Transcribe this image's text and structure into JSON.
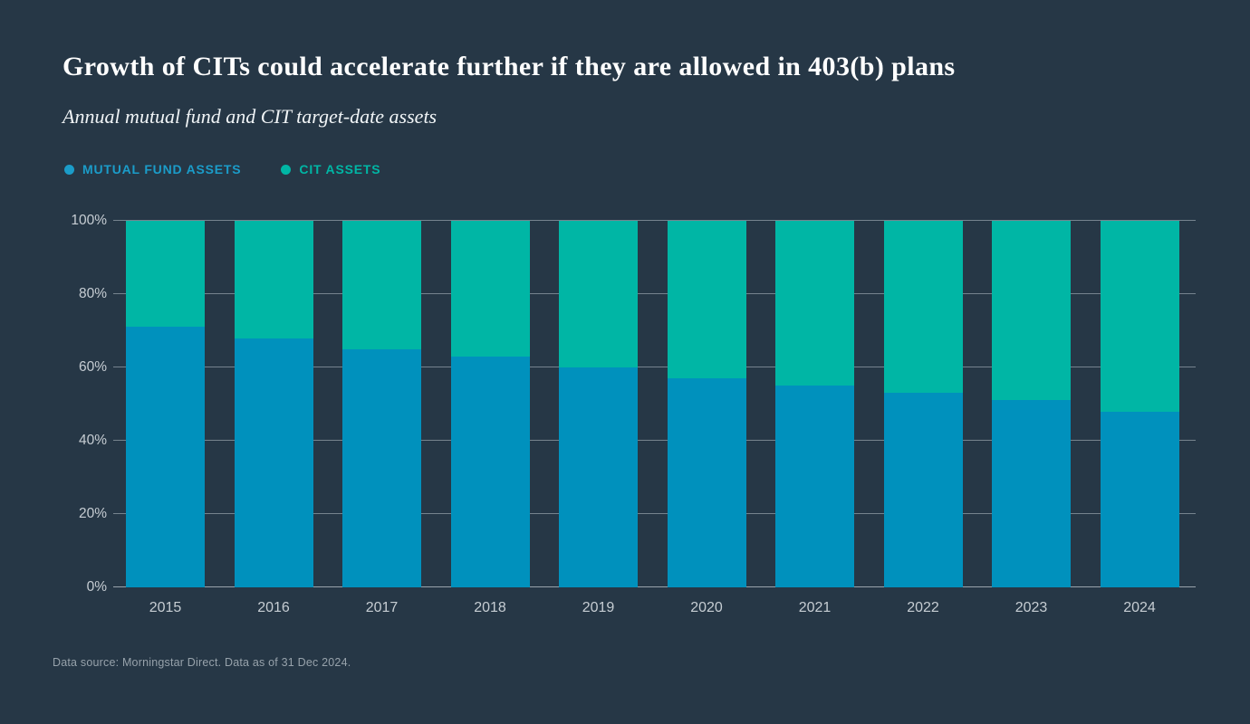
{
  "page": {
    "background_color": "#263746"
  },
  "header": {
    "title": "Growth of CITs could accelerate further if they are allowed in 403(b) plans",
    "subtitle": "Annual mutual fund and CIT target-date assets"
  },
  "legend": {
    "items": [
      {
        "label": "MUTUAL FUND ASSETS",
        "color": "#1b9cc9"
      },
      {
        "label": "CIT ASSETS",
        "color": "#00b6a5"
      }
    ]
  },
  "chart_data": {
    "type": "bar",
    "stacked": true,
    "percent_scale": true,
    "title": "Growth of CITs could accelerate further if they are allowed in 403(b) plans",
    "subtitle": "Annual mutual fund and CIT target-date assets",
    "categories": [
      "2015",
      "2016",
      "2017",
      "2018",
      "2019",
      "2020",
      "2021",
      "2022",
      "2023",
      "2024"
    ],
    "series": [
      {
        "name": "Mutual Fund Assets",
        "color": "#0091bd",
        "values": [
          71,
          68,
          65,
          63,
          60,
          57,
          55,
          53,
          51,
          48
        ]
      },
      {
        "name": "CIT Assets",
        "color": "#00b6a5",
        "values": [
          29,
          32,
          35,
          37,
          40,
          43,
          45,
          47,
          49,
          52
        ]
      }
    ],
    "xlabel": "",
    "ylabel": "",
    "ylim": [
      0,
      100
    ],
    "y_ticks": [
      0,
      20,
      40,
      60,
      80,
      100
    ],
    "y_tick_labels": [
      "0%",
      "20%",
      "40%",
      "60%",
      "80%",
      "100%"
    ],
    "grid": true,
    "legend_position": "top-left"
  },
  "footer": {
    "source": "Data source: Morningstar Direct. Data as of 31 Dec 2024."
  }
}
